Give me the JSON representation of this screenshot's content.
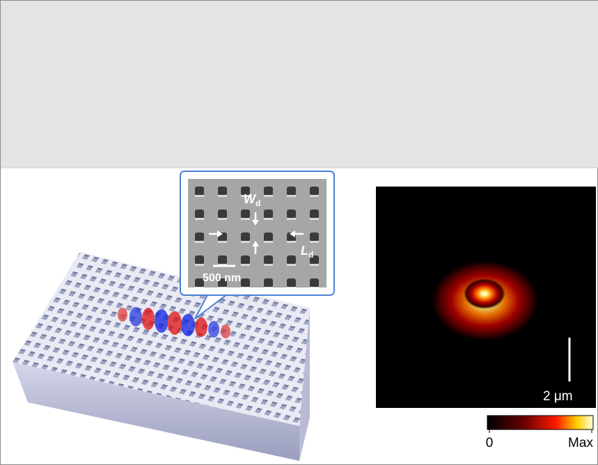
{
  "inset": {
    "width_label": {
      "symbol": "W",
      "subscript": "d"
    },
    "length_label": {
      "symbol": "L",
      "subscript": "d"
    },
    "scale_bar": "500 nm"
  },
  "field_map": {
    "scale_bar": "2 μm"
  },
  "colorbar": {
    "min_label": "0",
    "max_label": "Max"
  }
}
